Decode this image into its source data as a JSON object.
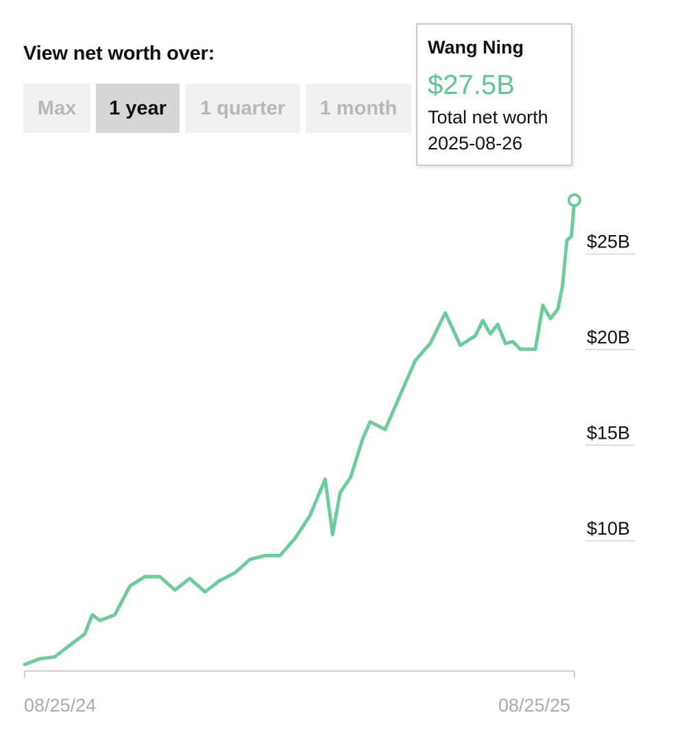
{
  "controls": {
    "heading": "View net worth over:",
    "ranges": [
      {
        "label": "Max",
        "active": false
      },
      {
        "label": "1 year",
        "active": true
      },
      {
        "label": "1 quarter",
        "active": false
      },
      {
        "label": "1 month",
        "active": false
      }
    ]
  },
  "tooltip": {
    "name": "Wang Ning",
    "value": "$27.5B",
    "label": "Total net worth",
    "date": "2025-08-26"
  },
  "colors": {
    "line": "#6ccc9c",
    "accent": "#5fc592",
    "gridline": "#dddddd",
    "axis": "#cfcfcf"
  },
  "chart_data": {
    "type": "line",
    "title": "",
    "xlabel": "",
    "ylabel": "",
    "x_tick_labels": [
      "08/25/24",
      "08/25/25"
    ],
    "y_ticks": [
      {
        "value": 10,
        "label": "$10B"
      },
      {
        "value": 15,
        "label": "$15B"
      },
      {
        "value": 20,
        "label": "$20B"
      },
      {
        "value": 25,
        "label": "$25B"
      }
    ],
    "xlim": [
      "2024-08-25",
      "2025-08-26"
    ],
    "ylim": [
      3.0,
      28.0
    ],
    "grid": false,
    "series": [
      {
        "name": "Wang Ning",
        "x": [
          "2024-08-25",
          "2024-09-04",
          "2024-09-14",
          "2024-09-24",
          "2024-10-04",
          "2024-10-09",
          "2024-10-14",
          "2024-10-24",
          "2024-11-03",
          "2024-11-13",
          "2024-11-23",
          "2024-12-03",
          "2024-12-13",
          "2024-12-23",
          "2025-01-02",
          "2025-01-12",
          "2025-01-22",
          "2025-02-01",
          "2025-02-11",
          "2025-02-21",
          "2025-03-03",
          "2025-03-13",
          "2025-03-18",
          "2025-03-23",
          "2025-03-30",
          "2025-04-07",
          "2025-04-12",
          "2025-04-22",
          "2025-05-02",
          "2025-05-12",
          "2025-05-22",
          "2025-06-01",
          "2025-06-11",
          "2025-06-21",
          "2025-06-26",
          "2025-07-01",
          "2025-07-06",
          "2025-07-11",
          "2025-07-16",
          "2025-07-21",
          "2025-07-31",
          "2025-08-05",
          "2025-08-10",
          "2025-08-15",
          "2025-08-18",
          "2025-08-21",
          "2025-08-24",
          "2025-08-26"
        ],
        "y": [
          3.2,
          3.5,
          3.6,
          4.2,
          4.8,
          5.8,
          5.5,
          5.8,
          7.3,
          7.8,
          7.8,
          7.1,
          7.7,
          7.0,
          7.6,
          8.0,
          8.7,
          8.9,
          8.9,
          9.8,
          11.0,
          12.9,
          10.0,
          12.2,
          13.0,
          15.0,
          15.9,
          15.5,
          17.3,
          19.1,
          20.0,
          21.6,
          19.9,
          20.4,
          21.2,
          20.5,
          21.0,
          20.0,
          20.1,
          19.7,
          19.7,
          22.0,
          21.3,
          21.8,
          23.0,
          25.4,
          25.6,
          27.5
        ]
      }
    ]
  }
}
